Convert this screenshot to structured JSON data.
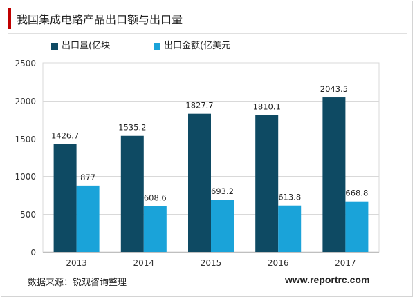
{
  "title": "我国集成电路产品出口额与出口量",
  "source": "数据来源：锐观咨询整理",
  "website": "www.reportrc.com",
  "colors": {
    "series0": "#0e4a63",
    "series1": "#1aa3d9",
    "accent": "#c00000"
  },
  "chart_data": {
    "type": "bar",
    "categories": [
      "2013",
      "2014",
      "2015",
      "2016",
      "2017"
    ],
    "series": [
      {
        "name": "出口量(亿块",
        "values": [
          1426.7,
          1535.2,
          1827.7,
          1810.1,
          2043.5
        ],
        "labels": [
          "1426.7",
          "1535.2",
          "1827.7",
          "1810.1",
          "2043.5"
        ]
      },
      {
        "name": "出口金额(亿美元",
        "values": [
          877,
          608.6,
          693.2,
          613.8,
          668.8
        ],
        "labels": [
          "877",
          "608.6",
          "693.2",
          "613.8",
          "668.8"
        ]
      }
    ],
    "ylim": [
      0,
      2500
    ],
    "yticks": [
      "0",
      "500",
      "1000",
      "1500",
      "2000",
      "2500"
    ],
    "grid": true,
    "legend": "top-left"
  }
}
